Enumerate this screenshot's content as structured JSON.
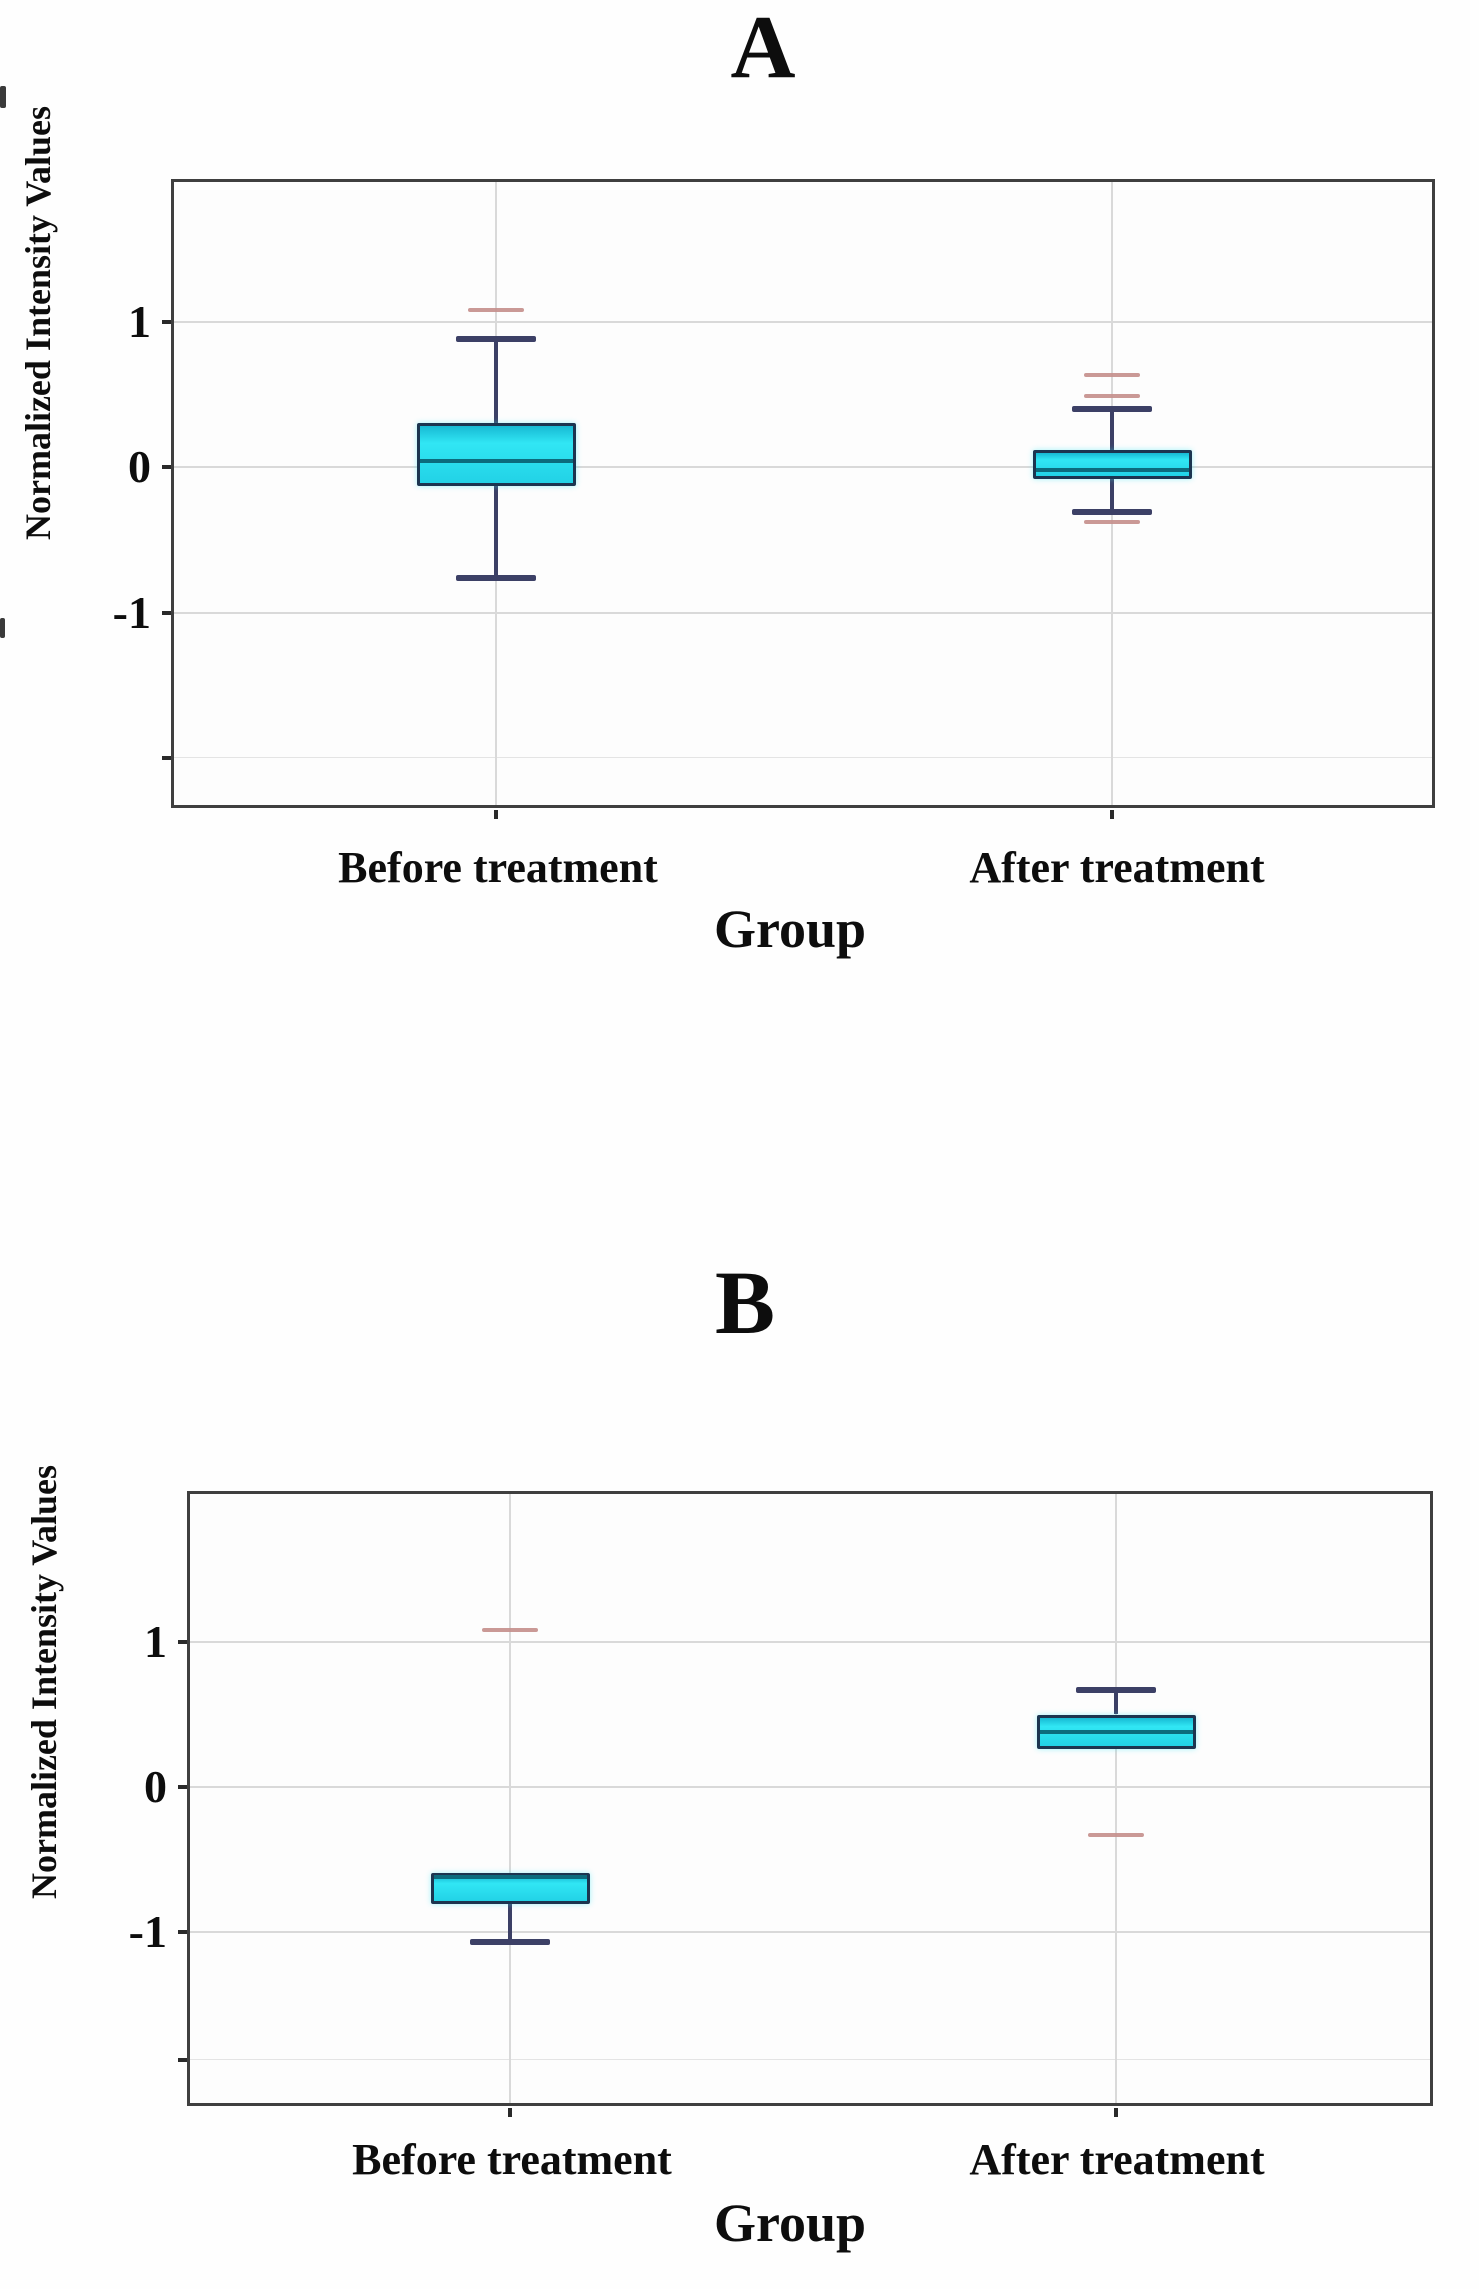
{
  "figure_caption_visible_text": [
    "A",
    "B"
  ],
  "colors": {
    "box_fill_bright": "#31e6f4",
    "box_fill_top": "#17b9d3",
    "box_fill_bottom": "#22d2e6",
    "box_border": "#1c3550",
    "median": "#0c6b7d",
    "whisker": "#3c4066",
    "outlier": "#c48e8b",
    "gridline": "#d9d9d9",
    "gridline_faint": "#e4e4e4",
    "plot_border": "#3f3f3f",
    "tick": "#2a2a2a",
    "text": "#0d0d0d"
  },
  "chart_data": [
    {
      "type": "box",
      "panel_label": "A",
      "title": "A",
      "xlabel": "Group",
      "ylabel": "Normalized Intensity Values",
      "categories": [
        "Before treatment",
        "After treatment"
      ],
      "ylim": [
        -2.35,
        2.0
      ],
      "grid": true,
      "legend": "none",
      "yticks": [
        {
          "value": 1,
          "label": "1"
        },
        {
          "value": 0,
          "label": "0"
        },
        {
          "value": -1,
          "label": "-1"
        },
        {
          "value": -2,
          "label": ""
        }
      ],
      "series": [
        {
          "category": "Before treatment",
          "whisker_low": -0.76,
          "q1": -0.13,
          "median": 0.04,
          "q3": 0.3,
          "whisker_high": 0.88,
          "outliers": [
            1.08
          ]
        },
        {
          "category": "After treatment",
          "whisker_low": -0.31,
          "q1": -0.08,
          "median": -0.02,
          "q3": 0.12,
          "whisker_high": 0.4,
          "outliers": [
            0.63,
            0.49,
            -0.38
          ]
        }
      ]
    },
    {
      "type": "box",
      "panel_label": "B",
      "title": "B",
      "xlabel": "Group",
      "ylabel": "Normalized Intensity Values",
      "categories": [
        "Before treatment",
        "After treatment"
      ],
      "ylim": [
        -2.2,
        2.05
      ],
      "grid": true,
      "legend": "none",
      "yticks": [
        {
          "value": 1,
          "label": "1"
        },
        {
          "value": 0,
          "label": "0"
        },
        {
          "value": -1,
          "label": "-1"
        },
        {
          "value": -1.88,
          "label": ""
        }
      ],
      "series": [
        {
          "category": "Before treatment",
          "whisker_low": -1.07,
          "q1": -0.81,
          "median": -0.62,
          "q3": -0.59,
          "whisker_high": -0.59,
          "outliers": [
            1.08
          ]
        },
        {
          "category": "After treatment",
          "whisker_low": 0.26,
          "q1": 0.26,
          "median": 0.38,
          "q3": 0.5,
          "whisker_high": 0.67,
          "outliers": [
            -0.33
          ]
        }
      ]
    }
  ]
}
